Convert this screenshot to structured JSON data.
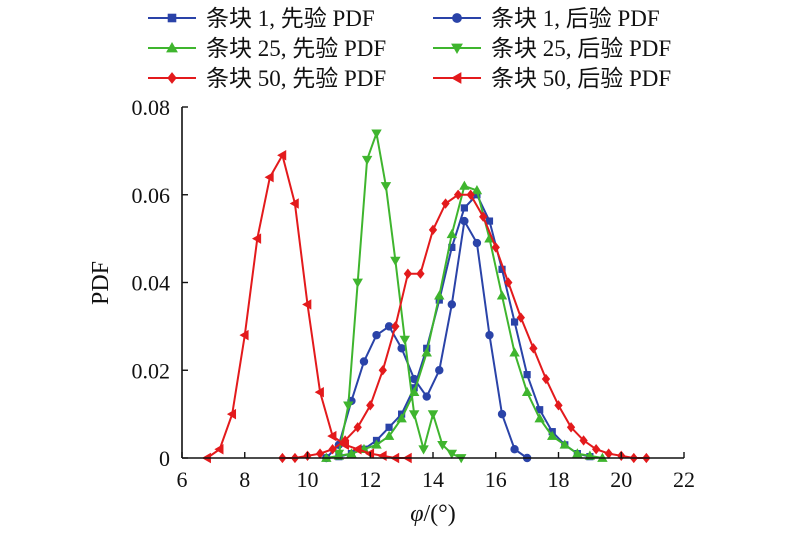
{
  "chart_data": {
    "type": "line",
    "xlabel_main": "φ",
    "xlabel_unit": "/(°)",
    "ylabel": "PDF",
    "xlim": [
      6,
      22
    ],
    "ylim": [
      0,
      0.08
    ],
    "xticks": [
      6,
      8,
      10,
      12,
      14,
      16,
      18,
      20,
      22
    ],
    "yticks": [
      0,
      0.02,
      0.04,
      0.06,
      0.08
    ],
    "ytick_labels": [
      "0",
      "0.02",
      "0.04",
      "0.06",
      "0.08"
    ],
    "grid": false,
    "legend_position": "top",
    "series": [
      {
        "name": "条块 1, 先验 PDF",
        "color": "#2a43a8",
        "marker": "square",
        "x": [
          10.6,
          11.0,
          11.4,
          11.8,
          12.2,
          12.6,
          13.0,
          13.4,
          13.8,
          14.2,
          14.6,
          15.0,
          15.4,
          15.8,
          16.2,
          16.6,
          17.0,
          17.4,
          17.8,
          18.2,
          18.6,
          19.0
        ],
        "y": [
          0.0,
          0.0003,
          0.001,
          0.002,
          0.004,
          0.007,
          0.01,
          0.016,
          0.025,
          0.036,
          0.048,
          0.057,
          0.06,
          0.054,
          0.043,
          0.031,
          0.019,
          0.011,
          0.006,
          0.003,
          0.001,
          0.0003
        ]
      },
      {
        "name": "条块 1, 后验 PDF",
        "color": "#2a43a8",
        "marker": "circle",
        "x": [
          10.6,
          11.0,
          11.4,
          11.8,
          12.2,
          12.6,
          13.0,
          13.4,
          13.8,
          14.2,
          14.6,
          15.0,
          15.4,
          15.8,
          16.2,
          16.6,
          17.0
        ],
        "y": [
          0.0,
          0.003,
          0.013,
          0.022,
          0.028,
          0.03,
          0.025,
          0.018,
          0.014,
          0.02,
          0.035,
          0.054,
          0.049,
          0.028,
          0.01,
          0.002,
          0.0
        ]
      },
      {
        "name": "条块 25, 先验 PDF",
        "color": "#3fb52e",
        "marker": "triangle-up",
        "x": [
          10.6,
          11.0,
          11.4,
          11.8,
          12.2,
          12.6,
          13.0,
          13.4,
          13.8,
          14.2,
          14.6,
          15.0,
          15.4,
          15.8,
          16.2,
          16.6,
          17.0,
          17.4,
          17.8,
          18.2,
          18.6,
          19.0,
          19.4
        ],
        "y": [
          0.0,
          0.0005,
          0.001,
          0.002,
          0.003,
          0.005,
          0.009,
          0.015,
          0.024,
          0.037,
          0.051,
          0.062,
          0.061,
          0.05,
          0.037,
          0.024,
          0.015,
          0.009,
          0.005,
          0.003,
          0.001,
          0.0005,
          0.0
        ]
      },
      {
        "name": "条块 25, 后验 PDF",
        "color": "#3fb52e",
        "marker": "triangle-down",
        "x": [
          11.0,
          11.3,
          11.6,
          11.9,
          12.2,
          12.5,
          12.8,
          13.1,
          13.4,
          13.7,
          14.0,
          14.3,
          14.6,
          14.9
        ],
        "y": [
          0.001,
          0.012,
          0.04,
          0.068,
          0.074,
          0.062,
          0.045,
          0.027,
          0.01,
          0.002,
          0.01,
          0.003,
          0.001,
          0.0
        ]
      },
      {
        "name": "条块 50, 先验 PDF",
        "color": "#e31a1c",
        "marker": "diamond",
        "x": [
          9.2,
          9.6,
          10.0,
          10.4,
          10.8,
          11.2,
          11.6,
          12.0,
          12.4,
          12.8,
          13.2,
          13.6,
          14.0,
          14.4,
          14.8,
          15.2,
          15.6,
          16.0,
          16.4,
          16.8,
          17.2,
          17.6,
          18.0,
          18.4,
          18.8,
          19.2,
          19.6,
          20.0,
          20.4,
          20.8
        ],
        "y": [
          0.0,
          0.0,
          0.0005,
          0.001,
          0.002,
          0.004,
          0.007,
          0.012,
          0.02,
          0.03,
          0.042,
          0.042,
          0.052,
          0.058,
          0.06,
          0.06,
          0.055,
          0.048,
          0.04,
          0.032,
          0.025,
          0.018,
          0.012,
          0.007,
          0.004,
          0.002,
          0.001,
          0.0005,
          0.0,
          0.0
        ]
      },
      {
        "name": "条块 50, 后验 PDF",
        "color": "#e31a1c",
        "marker": "triangle-left",
        "x": [
          6.8,
          7.2,
          7.6,
          8.0,
          8.4,
          8.8,
          9.2,
          9.6,
          10.0,
          10.4,
          10.8,
          11.2,
          11.6,
          12.0,
          12.4,
          12.8,
          13.2
        ],
        "y": [
          0.0,
          0.002,
          0.01,
          0.028,
          0.05,
          0.064,
          0.069,
          0.058,
          0.035,
          0.015,
          0.005,
          0.003,
          0.002,
          0.001,
          0.0005,
          0.0,
          0.0
        ]
      }
    ]
  }
}
